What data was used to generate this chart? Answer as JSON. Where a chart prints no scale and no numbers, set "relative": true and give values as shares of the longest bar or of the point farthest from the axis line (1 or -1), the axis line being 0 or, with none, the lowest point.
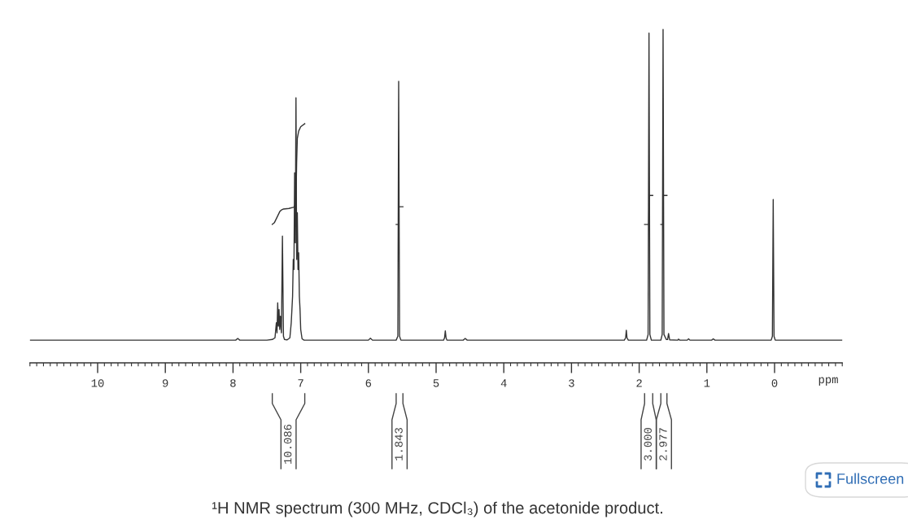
{
  "chart_data": {
    "type": "line",
    "relative": true,
    "xlim": [
      11,
      -1
    ],
    "xticks": [
      10,
      9,
      8,
      7,
      6,
      5,
      4,
      3,
      2,
      1,
      0
    ],
    "xlabel": "ppm",
    "series": [
      {
        "color": "#333333",
        "x": [
          11.0,
          7.96,
          7.93,
          7.9,
          7.5,
          7.42,
          7.38,
          7.36,
          7.35,
          7.34,
          7.33,
          7.32,
          7.31,
          7.3,
          7.285,
          7.27,
          7.255,
          7.24,
          7.2,
          7.16,
          7.14,
          7.12,
          7.11,
          7.1,
          7.09,
          7.08,
          7.07,
          7.06,
          7.05,
          7.04,
          7.03,
          7.02,
          7.01,
          7.0,
          6.98,
          6.95,
          6.0,
          5.97,
          5.94,
          5.59,
          5.565,
          5.553,
          5.54,
          5.52,
          4.89,
          4.875,
          4.864,
          4.853,
          4.84,
          4.6,
          4.57,
          4.54,
          2.22,
          2.2,
          2.19,
          2.18,
          2.16,
          1.89,
          1.868,
          1.855,
          1.842,
          1.82,
          1.68,
          1.66,
          1.647,
          1.634,
          1.6,
          1.58,
          1.566,
          1.55,
          1.43,
          1.42,
          1.4,
          1.29,
          1.27,
          1.25,
          0.93,
          0.905,
          0.88,
          0.05,
          0.032,
          0.02,
          0.008,
          -0.01,
          -1.0
        ],
        "values": [
          0.068,
          0.068,
          0.073,
          0.068,
          0.068,
          0.07,
          0.075,
          0.12,
          0.09,
          0.18,
          0.11,
          0.16,
          0.1,
          0.14,
          0.09,
          0.38,
          0.08,
          0.07,
          0.069,
          0.075,
          0.12,
          0.2,
          0.31,
          0.28,
          0.57,
          0.36,
          0.795,
          0.31,
          0.45,
          0.28,
          0.33,
          0.2,
          0.16,
          0.1,
          0.072,
          0.068,
          0.068,
          0.074,
          0.068,
          0.068,
          0.08,
          0.844,
          0.08,
          0.068,
          0.068,
          0.075,
          0.096,
          0.075,
          0.068,
          0.068,
          0.073,
          0.068,
          0.068,
          0.075,
          0.098,
          0.075,
          0.068,
          0.068,
          0.085,
          0.989,
          0.085,
          0.068,
          0.068,
          0.085,
          1.0,
          0.085,
          0.07,
          0.07,
          0.088,
          0.069,
          0.068,
          0.071,
          0.068,
          0.068,
          0.072,
          0.068,
          0.068,
          0.072,
          0.068,
          0.068,
          0.08,
          0.49,
          0.08,
          0.068,
          0.068
        ]
      },
      {
        "color": "#333333",
        "x": [
          7.42,
          7.39,
          7.356,
          7.33,
          7.308,
          7.28,
          7.26,
          7.175,
          7.1,
          7.08,
          7.07,
          7.065,
          7.06,
          7.05,
          7.03,
          7.0,
          6.94
        ],
        "values": [
          0.415,
          0.42,
          0.434,
          0.445,
          0.454,
          0.459,
          0.461,
          0.463,
          0.467,
          0.475,
          0.49,
          0.54,
          0.6,
          0.673,
          0.695,
          0.708,
          0.717
        ]
      },
      {
        "color": "#333333",
        "x": [
          5.59,
          5.556,
          5.55,
          5.49
        ],
        "values": [
          0.415,
          0.415,
          0.468,
          0.468
        ]
      },
      {
        "color": "#333333",
        "x": [
          1.92,
          1.858,
          1.852,
          1.8
        ],
        "values": [
          0.415,
          0.415,
          0.502,
          0.502
        ]
      },
      {
        "color": "#333333",
        "x": [
          1.68,
          1.65,
          1.644,
          1.59
        ],
        "values": [
          0.415,
          0.415,
          0.502,
          0.502
        ]
      }
    ],
    "annotations": [
      "10.086",
      "1.843",
      "3.000",
      "2.977",
      "¹H NMR spectrum (300 MHz, CDCl₃) of the acetonide product.",
      "Fullscreen"
    ]
  }
}
